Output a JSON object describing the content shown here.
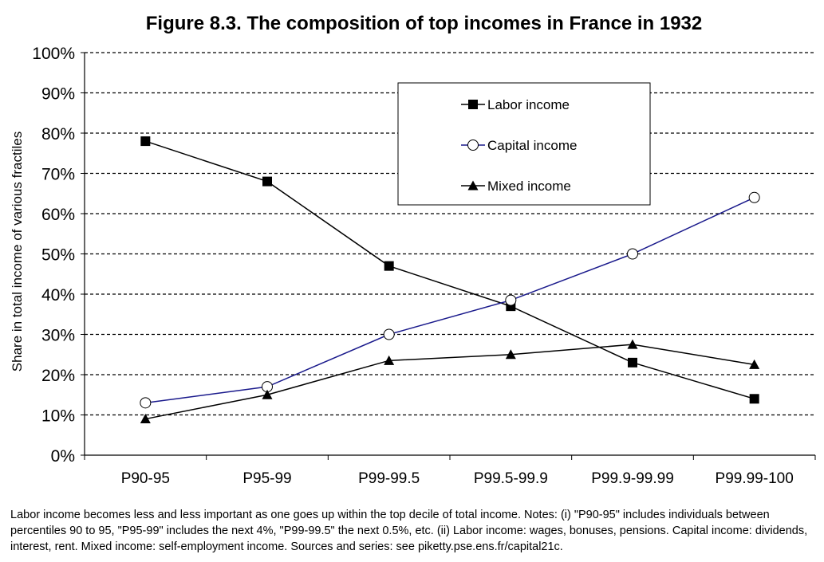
{
  "chart_data": {
    "type": "line",
    "title": "Figure 8.3. The composition of top incomes in France in 1932",
    "xlabel": "",
    "ylabel": "Share in total income of various fractiles",
    "categories": [
      "P90-95",
      "P95-99",
      "P99-99.5",
      "P99.5-99.9",
      "P99.9-99.99",
      "P99.99-100"
    ],
    "ylim": [
      0,
      100
    ],
    "yticks": [
      "0%",
      "10%",
      "20%",
      "30%",
      "40%",
      "50%",
      "60%",
      "70%",
      "80%",
      "90%",
      "100%"
    ],
    "grid": true,
    "legend_position": "top-right",
    "series": [
      {
        "name": "Labor income",
        "values": [
          78,
          68,
          47,
          37,
          23,
          14
        ],
        "marker": "square",
        "color": "#000000"
      },
      {
        "name": "Capital income",
        "values": [
          13,
          17,
          30,
          38.5,
          50,
          64
        ],
        "marker": "circle-open",
        "color": "#1a1a8c"
      },
      {
        "name": "Mixed income",
        "values": [
          9,
          15,
          23.5,
          25,
          27.5,
          22.5
        ],
        "marker": "triangle",
        "color": "#000000"
      }
    ],
    "note": "Labor income becomes less and less important as one goes up within the top decile of total income. Notes: (i) \"P90-95\" includes individuals between percentiles 90 to 95, \"P95-99\" includes the next 4%, \"P99-99.5\" the next 0.5%, etc. (ii) Labor income: wages, bonuses, pensions. Capital income: dividends, interest, rent. Mixed income: self-employment income. Sources and series: see piketty.pse.ens.fr/capital21c."
  }
}
